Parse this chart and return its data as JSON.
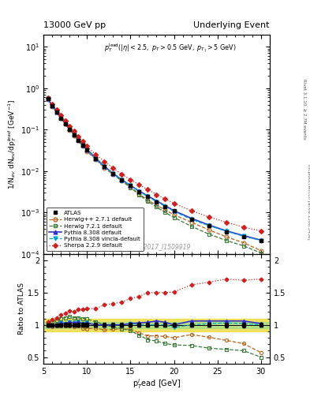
{
  "title_left": "13000 GeV pp",
  "title_right": "Underlying Event",
  "watermark": "ATLAS_2017_I1509919",
  "ylabel_main": "1/N$_{ev}$ dN$_{ev}$/dp$_T^{lead}$ [GeV$^{-1}$]",
  "ylabel_ratio": "Ratio to ATLAS",
  "xlabel": "p$_T^l$ead [GeV]",
  "xlim": [
    5,
    31
  ],
  "ylim_main": [
    0.0001,
    20
  ],
  "ylim_ratio": [
    0.4,
    2.1
  ],
  "atlas_x": [
    5.5,
    6.0,
    6.5,
    7.0,
    7.5,
    8.0,
    8.5,
    9.0,
    9.5,
    10.0,
    11.0,
    12.0,
    13.0,
    14.0,
    15.0,
    16.0,
    17.0,
    18.0,
    19.0,
    20.0,
    22.0,
    24.0,
    26.0,
    28.0,
    30.0
  ],
  "atlas_y": [
    0.55,
    0.38,
    0.27,
    0.19,
    0.14,
    0.1,
    0.075,
    0.055,
    0.042,
    0.032,
    0.02,
    0.013,
    0.0088,
    0.0062,
    0.0044,
    0.0032,
    0.0024,
    0.0018,
    0.0014,
    0.0011,
    0.00068,
    0.00047,
    0.00034,
    0.00026,
    0.00021
  ],
  "atlas_yerr": [
    0.012,
    0.009,
    0.007,
    0.005,
    0.004,
    0.003,
    0.002,
    0.0016,
    0.0012,
    0.0009,
    0.0006,
    0.0004,
    0.00025,
    0.00018,
    0.00013,
    9e-05,
    7e-05,
    5e-05,
    4e-05,
    3e-05,
    2e-05,
    1.6e-05,
    1.2e-05,
    9e-06,
    7e-06
  ],
  "herwig271_x": [
    5.5,
    6.0,
    6.5,
    7.0,
    7.5,
    8.0,
    8.5,
    9.0,
    9.5,
    10.0,
    11.0,
    12.0,
    13.0,
    14.0,
    15.0,
    16.0,
    17.0,
    18.0,
    19.0,
    20.0,
    22.0,
    24.0,
    26.0,
    28.0,
    30.0
  ],
  "herwig271_ratio": [
    0.98,
    0.97,
    0.98,
    0.99,
    0.98,
    0.99,
    0.97,
    0.98,
    0.95,
    0.94,
    0.95,
    0.92,
    0.93,
    0.94,
    0.93,
    0.875,
    0.83,
    0.83,
    0.82,
    0.8,
    0.85,
    0.81,
    0.76,
    0.71,
    0.57
  ],
  "herwig721_x": [
    5.5,
    6.0,
    6.5,
    7.0,
    7.5,
    8.0,
    8.5,
    9.0,
    9.5,
    10.0,
    11.0,
    12.0,
    13.0,
    14.0,
    15.0,
    16.0,
    17.0,
    18.0,
    19.0,
    20.0,
    22.0,
    24.0,
    26.0,
    28.0,
    30.0
  ],
  "herwig721_ratio": [
    1.02,
    1.05,
    1.07,
    1.1,
    1.11,
    1.13,
    1.11,
    1.11,
    1.1,
    1.09,
    1.05,
    1.0,
    0.97,
    0.94,
    0.91,
    0.84,
    0.77,
    0.75,
    0.71,
    0.69,
    0.68,
    0.64,
    0.62,
    0.6,
    0.5
  ],
  "pythia8_ratio": [
    1.0,
    1.0,
    1.0,
    1.03,
    1.02,
    1.04,
    1.03,
    1.04,
    1.02,
    1.03,
    1.0,
    1.0,
    1.0,
    1.0,
    1.02,
    1.03,
    1.04,
    1.06,
    1.04,
    1.0,
    1.06,
    1.06,
    1.06,
    1.06,
    1.02
  ],
  "pythia8v_ratio": [
    1.02,
    1.0,
    1.0,
    1.03,
    1.02,
    1.04,
    1.03,
    1.04,
    1.02,
    1.03,
    1.0,
    1.0,
    1.0,
    1.0,
    1.02,
    1.0,
    1.0,
    1.0,
    1.0,
    0.96,
    1.0,
    1.02,
    1.03,
    1.02,
    1.0
  ],
  "sherpa_ratio": [
    1.05,
    1.08,
    1.11,
    1.16,
    1.18,
    1.22,
    1.21,
    1.24,
    1.24,
    1.25,
    1.25,
    1.31,
    1.33,
    1.35,
    1.41,
    1.44,
    1.5,
    1.5,
    1.5,
    1.51,
    1.62,
    1.66,
    1.71,
    1.69,
    1.71
  ],
  "atlas_color": "#000000",
  "herwig271_color": "#b5651d",
  "herwig721_color": "#3a7a3a",
  "pythia8_color": "#3333cc",
  "pythia8v_color": "#00aacc",
  "sherpa_color": "#cc2222",
  "band_color_inner": "#aadd88",
  "band_color_outer": "#eedd44"
}
